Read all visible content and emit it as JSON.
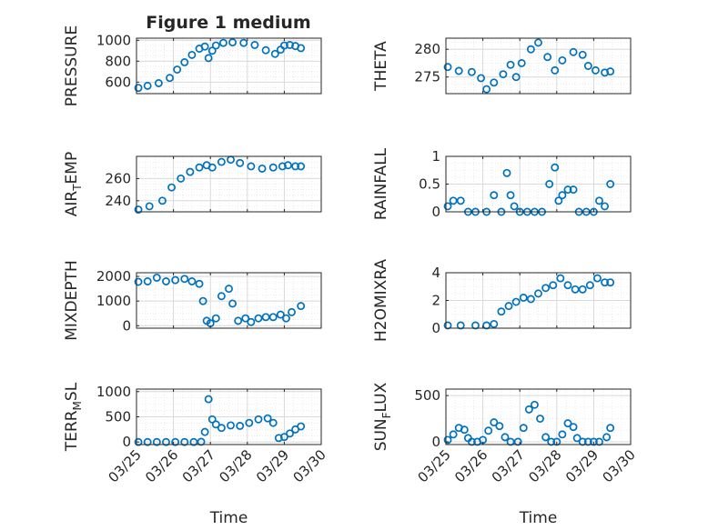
{
  "title": "Figure 1 medium",
  "colors": {
    "marker": "#0072BD",
    "grid": "#d9d9d9",
    "axis": "#262626"
  },
  "chart_data": [
    {
      "type": "scatter",
      "id": "pressure",
      "ylabel": "PRESSURE",
      "ylim": [
        490,
        1020
      ],
      "yticks": [
        600,
        800,
        1000
      ],
      "xlabel": "",
      "xticklabels": [],
      "x": [
        0.05,
        0.3,
        0.6,
        0.9,
        1.1,
        1.3,
        1.5,
        1.7,
        1.85,
        1.95,
        2.05,
        2.15,
        2.35,
        2.6,
        2.9,
        3.2,
        3.5,
        3.75,
        3.9,
        4.0,
        4.15,
        4.3,
        4.45
      ],
      "y": [
        545,
        565,
        590,
        640,
        720,
        790,
        860,
        920,
        940,
        830,
        900,
        950,
        975,
        980,
        975,
        955,
        905,
        870,
        910,
        950,
        955,
        945,
        925
      ]
    },
    {
      "type": "scatter",
      "id": "theta",
      "ylabel": "THETA",
      "ylim": [
        272,
        282
      ],
      "yticks": [
        275,
        280
      ],
      "xlabel": "",
      "xticklabels": [],
      "x": [
        0.05,
        0.35,
        0.7,
        0.95,
        1.1,
        1.3,
        1.55,
        1.75,
        1.9,
        2.05,
        2.3,
        2.5,
        2.75,
        2.95,
        3.15,
        3.45,
        3.7,
        3.85,
        4.05,
        4.3,
        4.45
      ],
      "y": [
        276.8,
        276.1,
        275.9,
        274.8,
        272.8,
        274.0,
        275.5,
        277.2,
        275.0,
        277.5,
        280.0,
        281.2,
        278.6,
        276.2,
        278.0,
        279.5,
        279.0,
        277.0,
        276.2,
        275.8,
        276.0
      ]
    },
    {
      "type": "scatter",
      "id": "air_temp",
      "ylabel": "AIR_TEMP",
      "ylim": [
        230,
        280
      ],
      "yticks": [
        240,
        260
      ],
      "xlabel": "",
      "xticklabels": [],
      "x": [
        0.05,
        0.35,
        0.7,
        0.95,
        1.2,
        1.45,
        1.7,
        1.9,
        2.05,
        2.3,
        2.55,
        2.8,
        3.1,
        3.4,
        3.7,
        3.95,
        4.1,
        4.3,
        4.45
      ],
      "y": [
        232,
        235,
        240,
        252,
        260,
        266,
        270,
        272,
        270,
        275,
        277,
        274,
        271,
        269,
        270,
        271,
        272,
        271,
        271
      ]
    },
    {
      "type": "scatter",
      "id": "rainfall",
      "ylabel": "RAINFALL",
      "ylim": [
        0,
        1
      ],
      "yticks": [
        0,
        0.5,
        1
      ],
      "xlabel": "",
      "xticklabels": [],
      "x": [
        0.05,
        0.2,
        0.4,
        0.6,
        0.8,
        1.1,
        1.3,
        1.5,
        1.65,
        1.75,
        1.85,
        2.0,
        2.2,
        2.4,
        2.6,
        2.8,
        2.95,
        3.05,
        3.15,
        3.3,
        3.45,
        3.6,
        3.8,
        4.0,
        4.15,
        4.3,
        4.45
      ],
      "y": [
        0.1,
        0.2,
        0.2,
        0.0,
        0.0,
        0.0,
        0.3,
        0.0,
        0.7,
        0.3,
        0.1,
        0.0,
        0.0,
        0.0,
        0.0,
        0.5,
        0.8,
        0.2,
        0.3,
        0.4,
        0.4,
        0.0,
        0.0,
        0.0,
        0.2,
        0.1,
        0.5
      ]
    },
    {
      "type": "scatter",
      "id": "mixdepth",
      "ylabel": "MIXDEPTH",
      "ylim": [
        -100,
        2150
      ],
      "yticks": [
        0,
        1000,
        2000
      ],
      "xlabel": "",
      "xticklabels": [],
      "x": [
        0.05,
        0.3,
        0.55,
        0.8,
        1.05,
        1.3,
        1.5,
        1.7,
        1.8,
        1.9,
        2.0,
        2.15,
        2.3,
        2.5,
        2.6,
        2.75,
        2.95,
        3.1,
        3.3,
        3.5,
        3.7,
        3.9,
        4.05,
        4.2,
        4.45
      ],
      "y": [
        1780,
        1800,
        1950,
        1800,
        1850,
        1900,
        1800,
        1700,
        1000,
        200,
        100,
        300,
        1200,
        1500,
        900,
        200,
        300,
        150,
        300,
        350,
        350,
        450,
        300,
        550,
        800
      ]
    },
    {
      "type": "scatter",
      "id": "h2omixra",
      "ylabel": "H2OMIXRA",
      "ylim": [
        0,
        4
      ],
      "yticks": [
        0,
        2,
        4
      ],
      "xlabel": "",
      "xticklabels": [],
      "x": [
        0.05,
        0.4,
        0.8,
        1.1,
        1.3,
        1.5,
        1.7,
        1.9,
        2.1,
        2.3,
        2.5,
        2.7,
        2.9,
        3.1,
        3.3,
        3.5,
        3.7,
        3.9,
        4.1,
        4.3,
        4.45
      ],
      "y": [
        0.2,
        0.2,
        0.2,
        0.2,
        0.3,
        1.2,
        1.6,
        1.9,
        2.2,
        2.1,
        2.5,
        2.9,
        3.1,
        3.6,
        3.1,
        2.8,
        2.8,
        3.1,
        3.6,
        3.3,
        3.3
      ]
    },
    {
      "type": "scatter",
      "id": "terr_msl",
      "ylabel": "TERR_MSL",
      "ylim": [
        -50,
        1050
      ],
      "yticks": [
        0,
        500,
        1000
      ],
      "xlabel": "Time",
      "xticklabels": [
        "03/25",
        "03/26",
        "03/27",
        "03/28",
        "03/29",
        "03/30"
      ],
      "x": [
        0.05,
        0.3,
        0.55,
        0.8,
        1.05,
        1.3,
        1.55,
        1.75,
        1.85,
        1.95,
        2.05,
        2.15,
        2.3,
        2.55,
        2.8,
        3.05,
        3.3,
        3.55,
        3.7,
        3.85,
        4.0,
        4.15,
        4.3,
        4.45
      ],
      "y": [
        0,
        0,
        0,
        0,
        0,
        0,
        0,
        5,
        200,
        850,
        450,
        350,
        280,
        330,
        320,
        380,
        450,
        470,
        380,
        80,
        100,
        170,
        250,
        310
      ]
    },
    {
      "type": "scatter",
      "id": "sun_flux",
      "ylabel": "SUN_FLUX",
      "ylim": [
        -30,
        570
      ],
      "yticks": [
        0,
        500
      ],
      "xlabel": "Time",
      "xticklabels": [
        "03/25",
        "03/26",
        "03/27",
        "03/28",
        "03/29",
        "03/30"
      ],
      "x": [
        0.05,
        0.2,
        0.35,
        0.5,
        0.6,
        0.7,
        0.85,
        1.0,
        1.15,
        1.3,
        1.45,
        1.6,
        1.75,
        1.95,
        2.1,
        2.25,
        2.4,
        2.55,
        2.7,
        2.85,
        3.0,
        3.15,
        3.3,
        3.45,
        3.55,
        3.7,
        3.85,
        4.0,
        4.15,
        4.35,
        4.45
      ],
      "y": [
        20,
        80,
        150,
        130,
        40,
        0,
        0,
        20,
        120,
        210,
        170,
        50,
        0,
        0,
        150,
        350,
        400,
        250,
        50,
        0,
        0,
        80,
        200,
        160,
        40,
        0,
        0,
        0,
        0,
        50,
        150
      ]
    }
  ]
}
